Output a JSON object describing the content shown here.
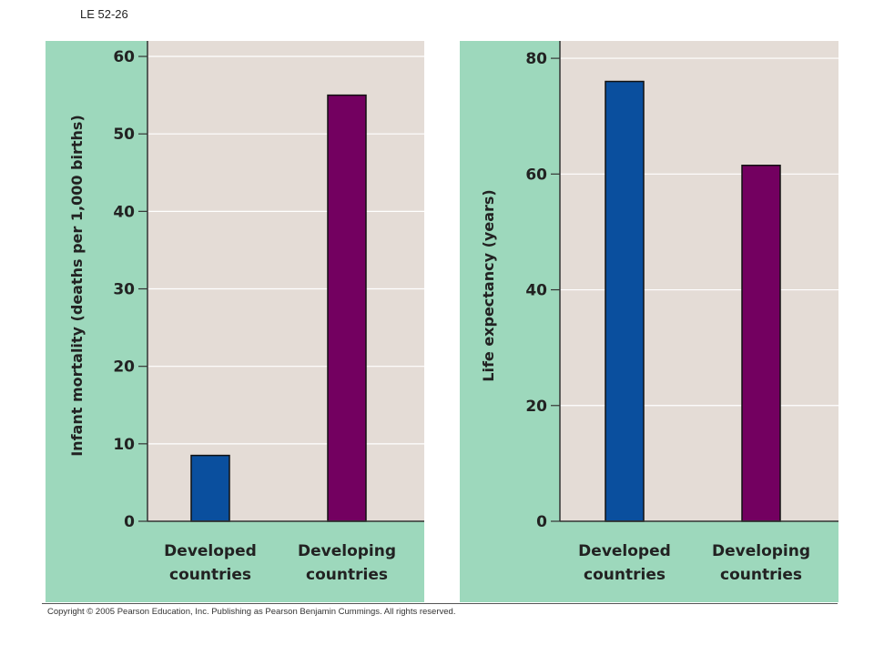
{
  "figure_label": "LE 52-26",
  "copyright": "Copyright © 2005 Pearson Education, Inc. Publishing as Pearson Benjamin Cummings. All rights reserved.",
  "colors": {
    "panel_bg": "#9dd8bc",
    "plot_bg": "#e4dcd6",
    "grid": "#ffffff",
    "developed": "#0a4f9e",
    "developing": "#730060",
    "axis": "#333333"
  },
  "chart_data": [
    {
      "type": "bar",
      "categories": [
        "Developed\ncountries",
        "Developing\ncountries"
      ],
      "values": [
        8.5,
        55
      ],
      "ylabel": "Infant mortality (deaths per 1,000 births)",
      "xlabel": "",
      "ylim": [
        0,
        62
      ],
      "yticks": [
        0,
        10,
        20,
        30,
        40,
        50,
        60
      ],
      "grid": true
    },
    {
      "type": "bar",
      "categories": [
        "Developed\ncountries",
        "Developing\ncountries"
      ],
      "values": [
        76,
        61.5
      ],
      "ylabel": "Life expectancy (years)",
      "xlabel": "",
      "ylim": [
        0,
        83
      ],
      "yticks": [
        0,
        20,
        40,
        60,
        80
      ],
      "grid": true
    }
  ]
}
